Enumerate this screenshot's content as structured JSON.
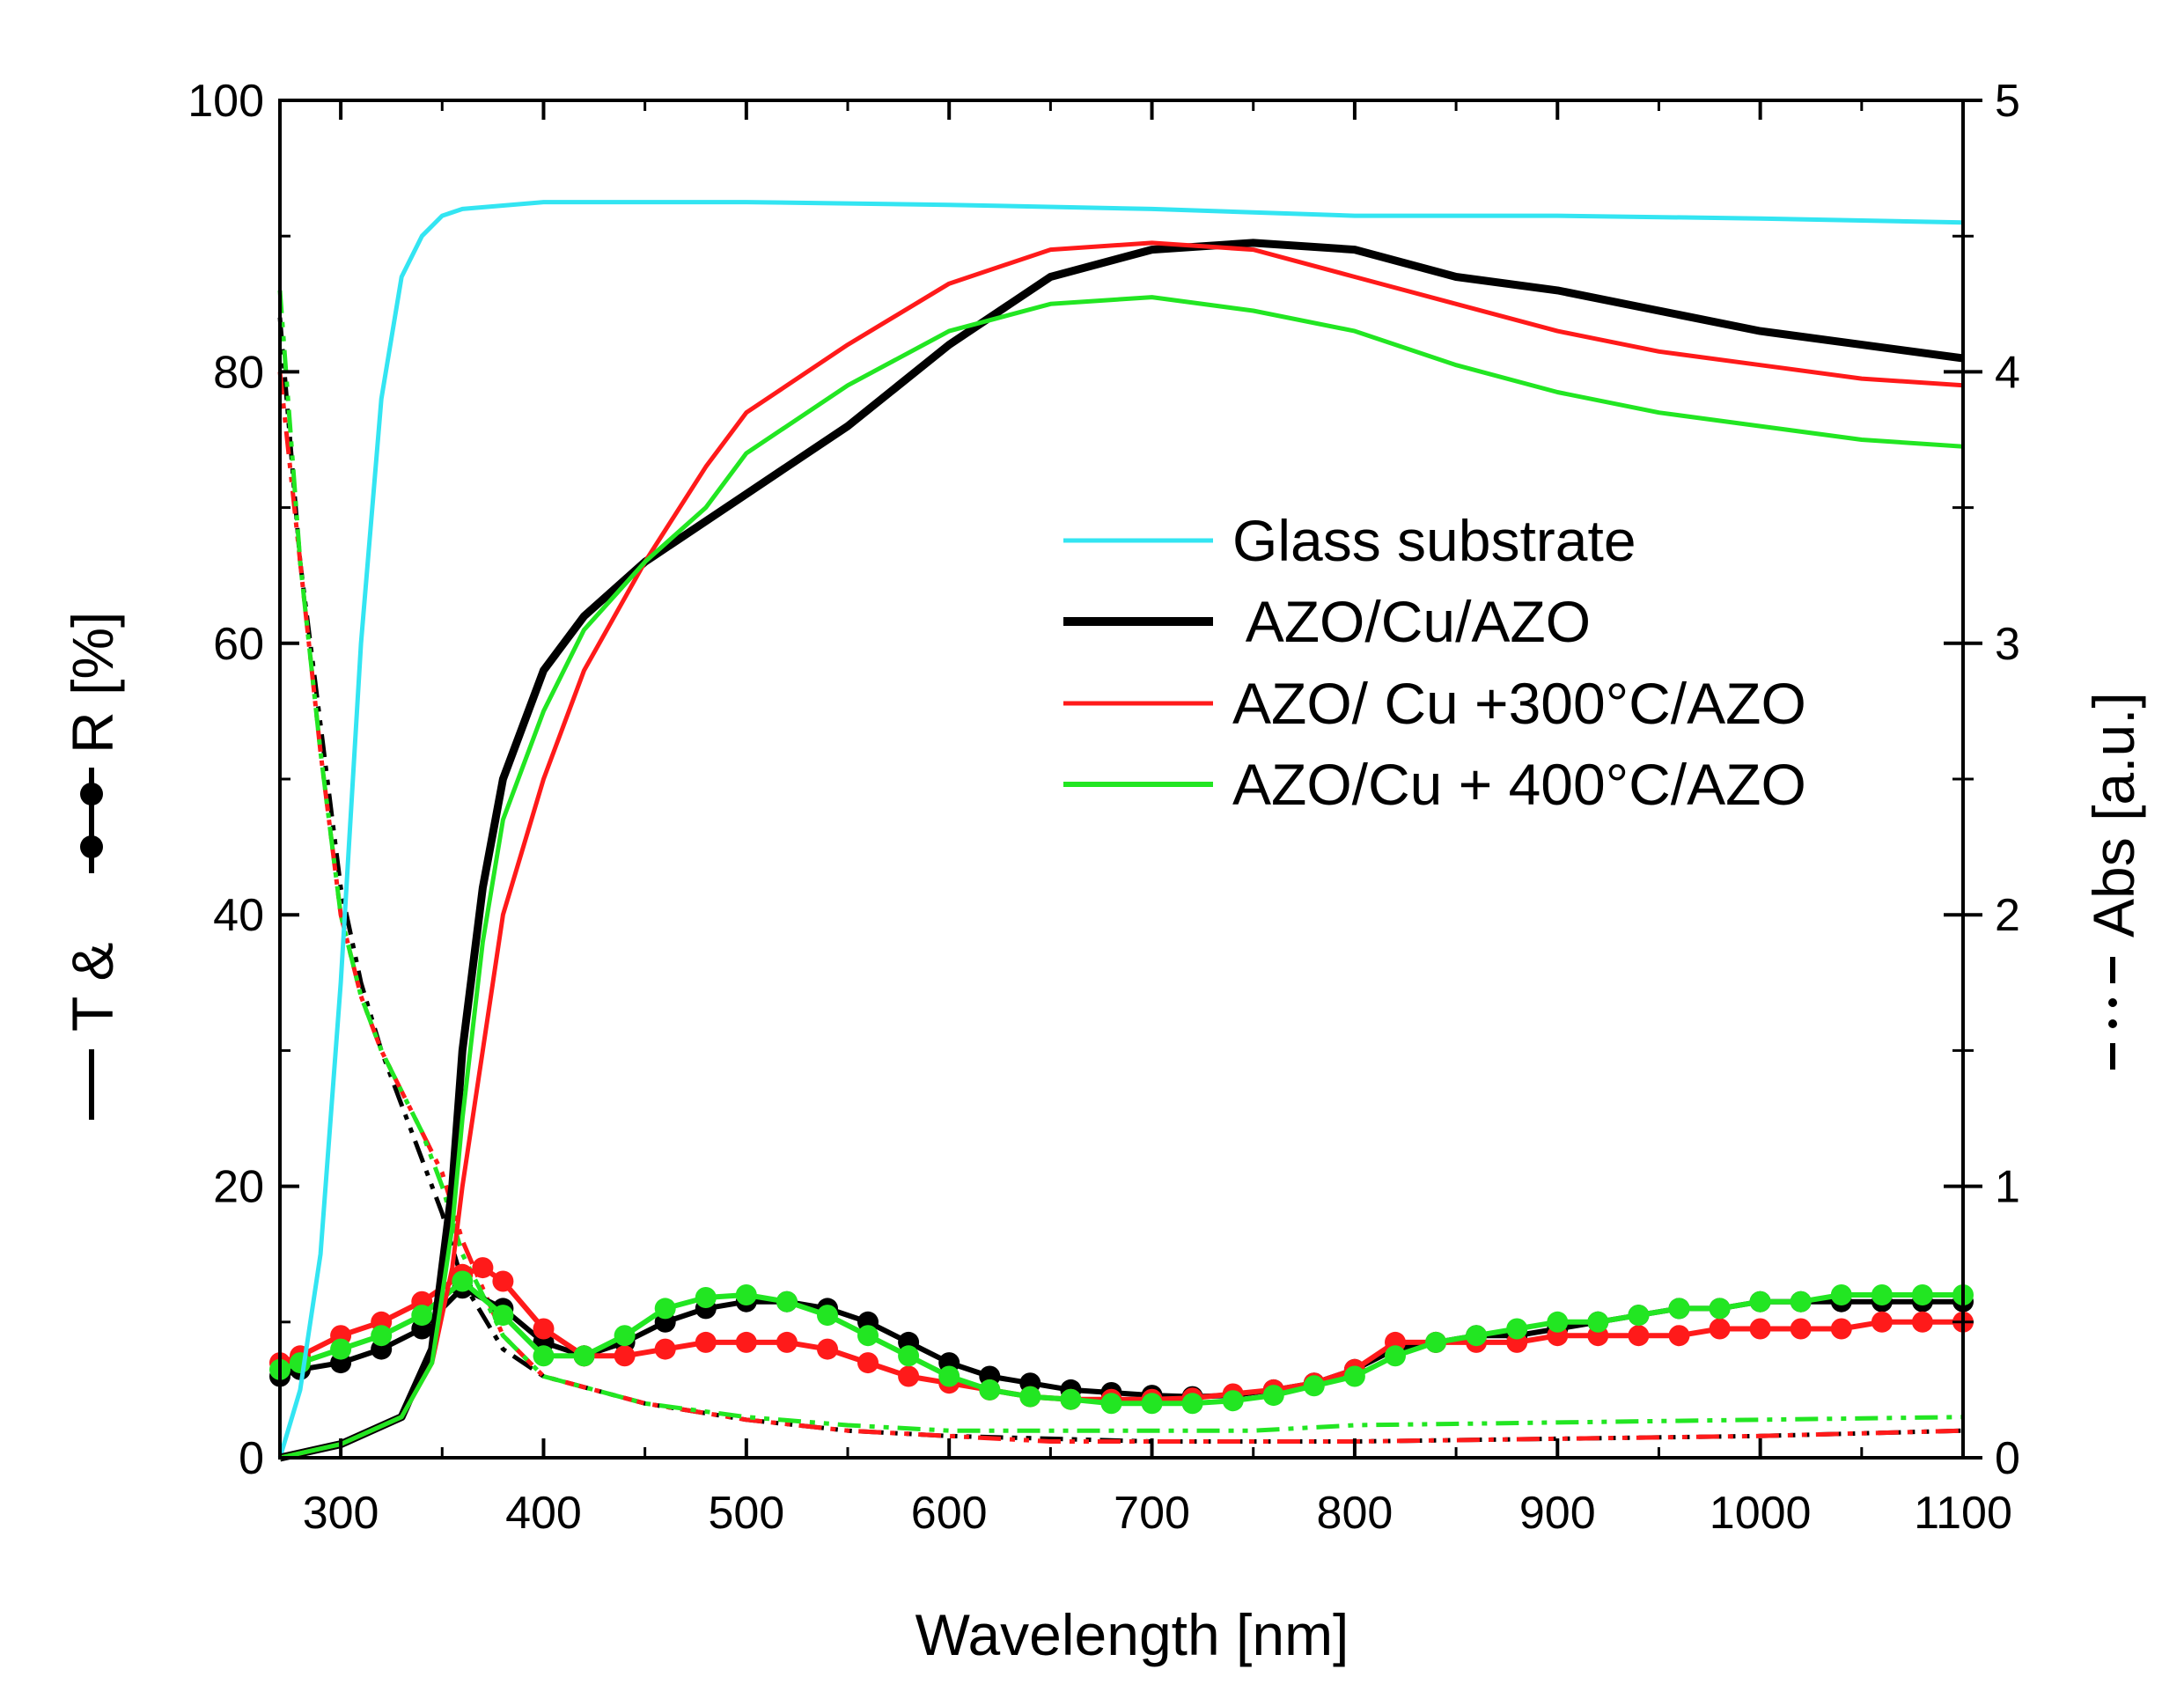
{
  "chart_data": {
    "type": "line",
    "title": "",
    "xlabel": "Wavelength [nm]",
    "ylabel_left": {
      "prefix": "T &",
      "suffix": "R [%]"
    },
    "ylabel_right": "Abs [a.u.]",
    "xlim": [
      270,
      1100
    ],
    "ylim_left": [
      0,
      100
    ],
    "ylim_right": [
      0,
      5
    ],
    "x_ticks": [
      300,
      400,
      500,
      600,
      700,
      800,
      900,
      1000,
      1100
    ],
    "y_left_ticks": [
      0,
      20,
      40,
      60,
      80,
      100
    ],
    "y_right_ticks": [
      0,
      1,
      2,
      3,
      4,
      5
    ],
    "grid": false,
    "legend_position": "center-right",
    "colors": {
      "glass": "#33e5f2",
      "azo": "#000000",
      "azo300": "#ff1a1a",
      "azo400": "#22e622"
    },
    "legend": [
      {
        "label": "Glass substrate",
        "series": "glass"
      },
      {
        "label": " AZO/Cu/AZO",
        "series": "azo"
      },
      {
        "label": "AZO/ Cu +300°C/AZO",
        "series": "azo300"
      },
      {
        "label": "AZO/Cu + 400°C/AZO",
        "series": "azo400"
      }
    ],
    "transmittance": [
      {
        "name": "Glass substrate",
        "key": "glass",
        "x": [
          270,
          280,
          290,
          300,
          310,
          320,
          330,
          340,
          350,
          360,
          400,
          500,
          600,
          700,
          800,
          900,
          1000,
          1100
        ],
        "y": [
          0,
          5,
          15,
          35,
          60,
          78,
          87,
          90,
          91.5,
          92,
          92.5,
          92.5,
          92.3,
          92,
          91.5,
          91.5,
          91.3,
          91
        ]
      },
      {
        "name": "AZO/Cu/AZO",
        "key": "azo",
        "x": [
          270,
          300,
          330,
          345,
          355,
          360,
          370,
          380,
          400,
          420,
          450,
          500,
          550,
          600,
          650,
          700,
          750,
          800,
          850,
          900,
          950,
          1000,
          1050,
          1100
        ],
        "y": [
          0,
          1,
          3,
          8,
          20,
          30,
          42,
          50,
          58,
          62,
          66,
          71,
          76,
          82,
          87,
          89,
          89.5,
          89,
          87,
          86,
          84.5,
          83,
          82,
          81
        ]
      },
      {
        "name": "AZO/ Cu +300°C/AZO",
        "key": "azo300",
        "x": [
          270,
          300,
          330,
          345,
          355,
          360,
          370,
          380,
          400,
          420,
          450,
          480,
          500,
          550,
          600,
          650,
          700,
          750,
          800,
          850,
          900,
          950,
          1000,
          1050,
          1100
        ],
        "y": [
          0,
          1,
          3,
          7,
          14,
          20,
          30,
          40,
          50,
          58,
          66,
          73,
          77,
          82,
          86.5,
          89,
          89.5,
          89,
          87,
          85,
          83,
          81.5,
          80.5,
          79.5,
          79
        ]
      },
      {
        "name": "AZO/Cu + 400°C/AZO",
        "key": "azo400",
        "x": [
          270,
          300,
          330,
          345,
          355,
          360,
          370,
          380,
          400,
          420,
          450,
          480,
          500,
          550,
          600,
          650,
          700,
          750,
          800,
          850,
          900,
          950,
          1000,
          1050,
          1100
        ],
        "y": [
          0,
          1,
          3,
          7,
          17,
          25,
          38,
          47,
          55,
          61,
          66,
          70,
          74,
          79,
          83,
          85,
          85.5,
          84.5,
          83,
          80.5,
          78.5,
          77,
          76,
          75,
          74.5
        ]
      }
    ],
    "reflectance": [
      {
        "name": "AZO/Cu/AZO",
        "key": "azo",
        "x": [
          270,
          280,
          300,
          320,
          340,
          360,
          380,
          400,
          420,
          440,
          460,
          480,
          500,
          520,
          540,
          560,
          580,
          600,
          620,
          640,
          660,
          680,
          700,
          720,
          740,
          760,
          780,
          800,
          820,
          840,
          860,
          880,
          900,
          920,
          940,
          960,
          980,
          1000,
          1020,
          1040,
          1060,
          1080,
          1100
        ],
        "y": [
          6,
          6.5,
          7,
          8,
          9.5,
          12.5,
          11,
          8.5,
          7.5,
          8.5,
          10,
          11,
          11.5,
          11.5,
          11,
          10,
          8.5,
          7,
          6,
          5.5,
          5,
          4.8,
          4.6,
          4.5,
          4.6,
          5,
          5.5,
          6.5,
          8,
          8.5,
          9,
          9,
          9.5,
          10,
          10.5,
          11,
          11,
          11.5,
          11.5,
          11.5,
          11.5,
          11.5,
          11.5
        ]
      },
      {
        "name": "AZO/ Cu +300°C/AZO",
        "key": "azo300",
        "x": [
          270,
          280,
          300,
          320,
          340,
          360,
          370,
          380,
          400,
          420,
          440,
          460,
          480,
          500,
          520,
          540,
          560,
          580,
          600,
          620,
          640,
          660,
          680,
          700,
          720,
          740,
          760,
          780,
          800,
          820,
          840,
          860,
          880,
          900,
          920,
          940,
          960,
          980,
          1000,
          1020,
          1040,
          1060,
          1080,
          1100
        ],
        "y": [
          7,
          7.5,
          9,
          10,
          11.5,
          13.5,
          14,
          13,
          9.5,
          7.5,
          7.5,
          8,
          8.5,
          8.5,
          8.5,
          8,
          7,
          6,
          5.5,
          5,
          4.5,
          4.3,
          4.3,
          4.3,
          4.4,
          4.7,
          5,
          5.5,
          6.5,
          8.5,
          8.5,
          8.5,
          8.5,
          9,
          9,
          9,
          9,
          9.5,
          9.5,
          9.5,
          9.5,
          10,
          10,
          10
        ]
      },
      {
        "name": "AZO/Cu + 400°C/AZO",
        "key": "azo400",
        "x": [
          270,
          280,
          300,
          320,
          340,
          360,
          380,
          400,
          420,
          440,
          460,
          480,
          500,
          520,
          540,
          560,
          580,
          600,
          620,
          640,
          660,
          680,
          700,
          720,
          740,
          760,
          780,
          800,
          820,
          840,
          860,
          880,
          900,
          920,
          940,
          960,
          980,
          1000,
          1020,
          1040,
          1060,
          1080,
          1100
        ],
        "y": [
          6.5,
          7,
          8,
          9,
          10.5,
          13,
          10.5,
          7.5,
          7.5,
          9,
          11,
          11.8,
          12,
          11.5,
          10.5,
          9,
          7.5,
          6,
          5,
          4.5,
          4.3,
          4,
          4,
          4,
          4.2,
          4.6,
          5.3,
          6,
          7.5,
          8.5,
          9,
          9.5,
          10,
          10,
          10.5,
          11,
          11,
          11.5,
          11.5,
          12,
          12,
          12,
          12
        ]
      }
    ],
    "absorbance": [
      {
        "name": "AZO/Cu/AZO",
        "key": "azo",
        "x": [
          270,
          280,
          290,
          300,
          310,
          320,
          330,
          340,
          350,
          360,
          380,
          400,
          450,
          500,
          550,
          600,
          650,
          700,
          750,
          800,
          900,
          1000,
          1100
        ],
        "y": [
          4.2,
          3.3,
          2.7,
          2.1,
          1.75,
          1.5,
          1.3,
          1.1,
          0.9,
          0.65,
          0.4,
          0.3,
          0.2,
          0.14,
          0.1,
          0.08,
          0.07,
          0.06,
          0.06,
          0.06,
          0.07,
          0.08,
          0.1
        ]
      },
      {
        "name": "AZO/ Cu +300°C/AZO",
        "key": "azo300",
        "x": [
          270,
          280,
          290,
          300,
          310,
          320,
          330,
          340,
          350,
          360,
          380,
          400,
          450,
          500,
          550,
          600,
          650,
          700,
          750,
          800,
          900,
          1000,
          1100
        ],
        "y": [
          4.0,
          3.3,
          2.6,
          2.0,
          1.7,
          1.5,
          1.35,
          1.2,
          1.05,
          0.8,
          0.45,
          0.3,
          0.2,
          0.14,
          0.1,
          0.08,
          0.06,
          0.06,
          0.06,
          0.06,
          0.07,
          0.08,
          0.1
        ]
      },
      {
        "name": "AZO/Cu + 400°C/AZO",
        "key": "azo400",
        "x": [
          270,
          280,
          290,
          300,
          310,
          320,
          330,
          340,
          350,
          360,
          380,
          400,
          450,
          500,
          550,
          600,
          650,
          700,
          750,
          800,
          900,
          1000,
          1100
        ],
        "y": [
          4.3,
          3.3,
          2.6,
          2.0,
          1.7,
          1.5,
          1.35,
          1.2,
          1.0,
          0.75,
          0.45,
          0.3,
          0.2,
          0.15,
          0.12,
          0.1,
          0.1,
          0.1,
          0.1,
          0.12,
          0.13,
          0.14,
          0.15
        ]
      }
    ]
  }
}
